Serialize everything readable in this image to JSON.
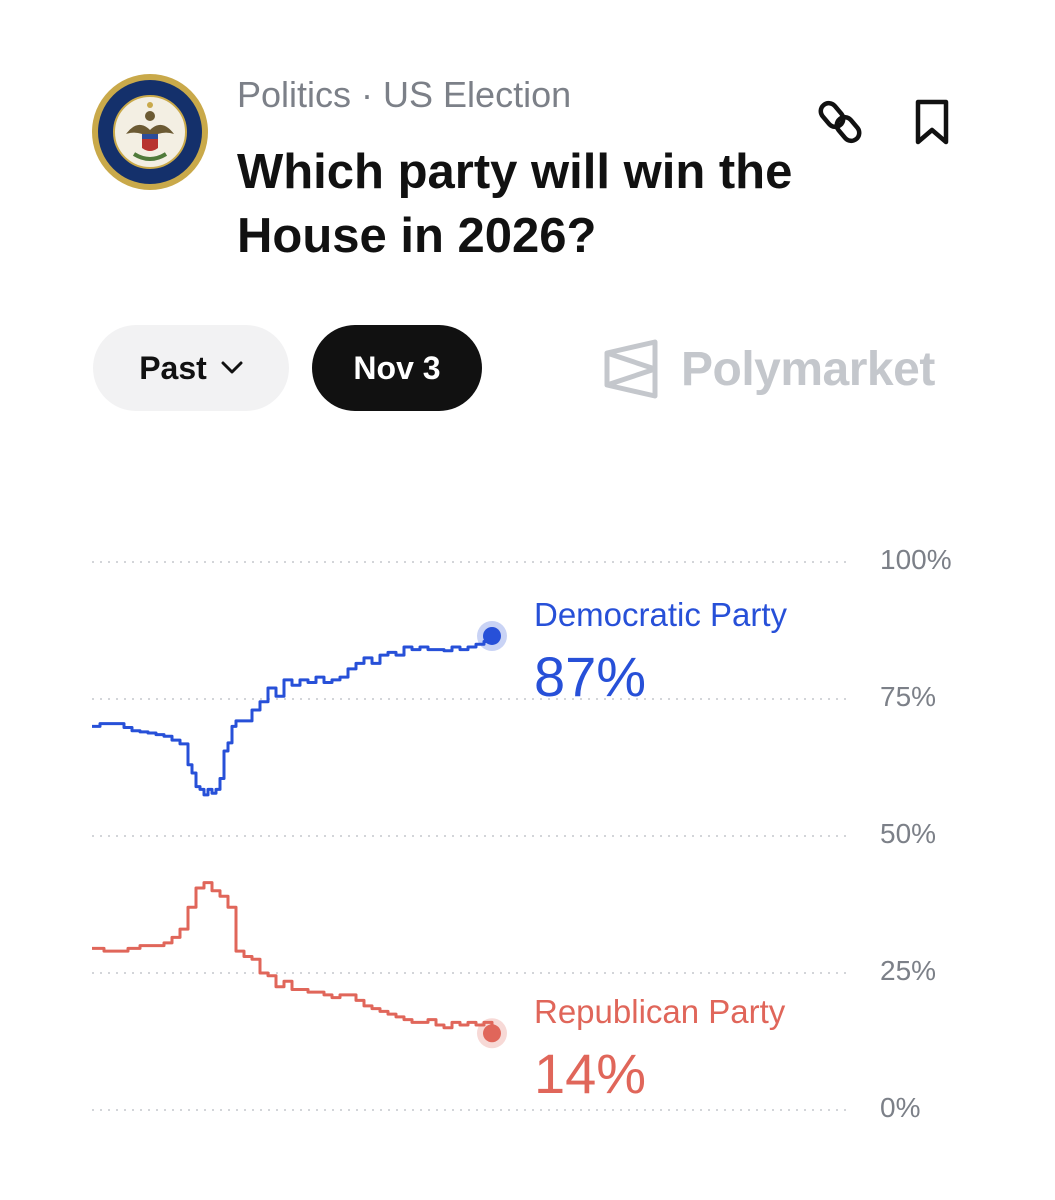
{
  "header": {
    "category": "Politics · US Election",
    "title": "Which party will win the House in 2026?",
    "seal_text": "U.S. HOUSE OF REPRESENTATIVES",
    "link_icon": "link-icon",
    "bookmark_icon": "bookmark-icon"
  },
  "controls": {
    "range_label": "Past",
    "range_icon": "chevron-down-icon",
    "date_label": "Nov 3",
    "brand": "Polymarket",
    "brand_icon": "polymarket-logo-icon"
  },
  "colors": {
    "democratic": "#2750d8",
    "republican": "#e0665a",
    "gridline": "#d3d5d9",
    "muted_text": "#7c8088"
  },
  "chart_data": {
    "type": "line",
    "title": "",
    "xlabel": "",
    "ylabel": "",
    "ylim": [
      0,
      100
    ],
    "y_ticks": [
      {
        "value": 100,
        "label": "100%"
      },
      {
        "value": 75,
        "label": "75%"
      },
      {
        "value": 50,
        "label": "50%"
      },
      {
        "value": 25,
        "label": "25%"
      },
      {
        "value": 0,
        "label": "0%"
      }
    ],
    "grid": "horizontal dotted",
    "series": [
      {
        "name": "Democratic Party",
        "current_label": "87%",
        "color": "#2750d8",
        "x": [
          0,
          2,
          4,
          6,
          8,
          10,
          12,
          14,
          16,
          18,
          20,
          22,
          24,
          25,
          26,
          27,
          28,
          29,
          30,
          31,
          32,
          33,
          34,
          35,
          36,
          38,
          40,
          42,
          44,
          46,
          48,
          50,
          52,
          54,
          56,
          58,
          60,
          62,
          64,
          66,
          68,
          70,
          72,
          74,
          76,
          78,
          80,
          82,
          84,
          86,
          88,
          90,
          92,
          94,
          96,
          98,
          100
        ],
        "values": [
          70,
          70.5,
          70.5,
          70.5,
          69.8,
          69.2,
          69,
          68.8,
          68.5,
          68.2,
          67.5,
          66.8,
          63,
          61.5,
          59,
          58.5,
          57.5,
          58.5,
          57.8,
          58.5,
          60.5,
          65.5,
          67,
          70,
          71,
          71,
          73,
          74.5,
          77,
          75.5,
          78.5,
          77.5,
          78.5,
          78,
          79,
          78,
          78.5,
          79,
          80.5,
          81.5,
          82.5,
          81.5,
          83,
          83.5,
          83,
          84.5,
          84,
          84.5,
          84,
          84,
          83.8,
          84.5,
          84,
          84.5,
          85,
          85.5,
          86.5
        ]
      },
      {
        "name": "Republican Party",
        "current_label": "14%",
        "color": "#e0665a",
        "x": [
          0,
          3,
          6,
          9,
          12,
          15,
          18,
          20,
          22,
          24,
          26,
          28,
          30,
          32,
          34,
          36,
          38,
          40,
          42,
          44,
          46,
          48,
          50,
          52,
          54,
          56,
          58,
          60,
          62,
          64,
          66,
          68,
          70,
          72,
          74,
          76,
          78,
          80,
          82,
          84,
          86,
          88,
          90,
          92,
          94,
          96,
          98,
          100
        ],
        "values": [
          29.5,
          29,
          29,
          29.5,
          30,
          30,
          30.5,
          31.5,
          33,
          37,
          40.5,
          41.5,
          40,
          39,
          37,
          29,
          28,
          27.5,
          25,
          24.5,
          22.5,
          23.5,
          22,
          22,
          21.5,
          21.5,
          21,
          20.5,
          21,
          21,
          20,
          19,
          18.5,
          18,
          17.5,
          17,
          16.5,
          16,
          16,
          16.5,
          15.5,
          15,
          16,
          15.5,
          16,
          15.5,
          16,
          14
        ]
      }
    ]
  }
}
